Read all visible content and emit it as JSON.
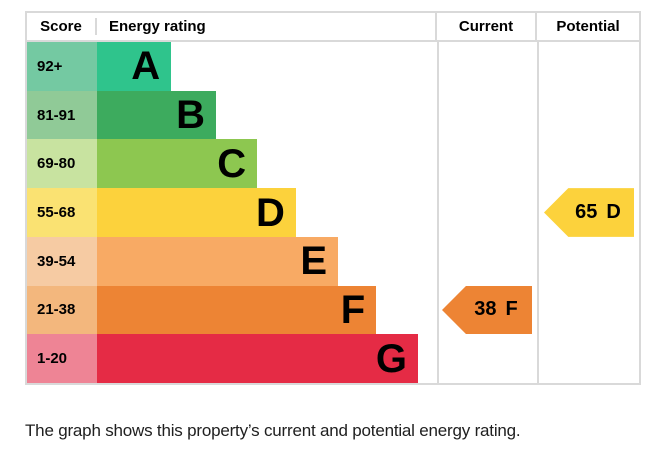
{
  "chart_data": {
    "type": "bar",
    "orientation": "horizontal",
    "columns": [
      "Score",
      "Energy rating",
      "Current",
      "Potential"
    ],
    "bands": [
      {
        "letter": "A",
        "score_range": "92+",
        "width_pct": 21.8,
        "color": "#2fc48c",
        "score_cell_color": "#74c9a2"
      },
      {
        "letter": "B",
        "score_range": "81-91",
        "width_pct": 35.0,
        "color": "#3dab5e",
        "score_cell_color": "#90ca97"
      },
      {
        "letter": "C",
        "score_range": "69-80",
        "width_pct": 47.1,
        "color": "#8dc750",
        "score_cell_color": "#c8e3a0"
      },
      {
        "letter": "D",
        "score_range": "55-68",
        "width_pct": 58.5,
        "color": "#fcd23c",
        "score_cell_color": "#fae272"
      },
      {
        "letter": "E",
        "score_range": "39-54",
        "width_pct": 70.9,
        "color": "#f8aa64",
        "score_cell_color": "#f6cba3"
      },
      {
        "letter": "F",
        "score_range": "21-38",
        "width_pct": 82.1,
        "color": "#ed8434",
        "score_cell_color": "#f3b77d"
      },
      {
        "letter": "G",
        "score_range": "1-20",
        "width_pct": 94.4,
        "color": "#e52b45",
        "score_cell_color": "#ee8495"
      }
    ],
    "current": {
      "score": 38,
      "band": "F",
      "color": "#ed8434"
    },
    "potential": {
      "score": 65,
      "band": "D",
      "color": "#fcd23c"
    },
    "legend_position": "none",
    "grid": false
  },
  "caption": "The graph shows this property’s current and potential energy rating."
}
